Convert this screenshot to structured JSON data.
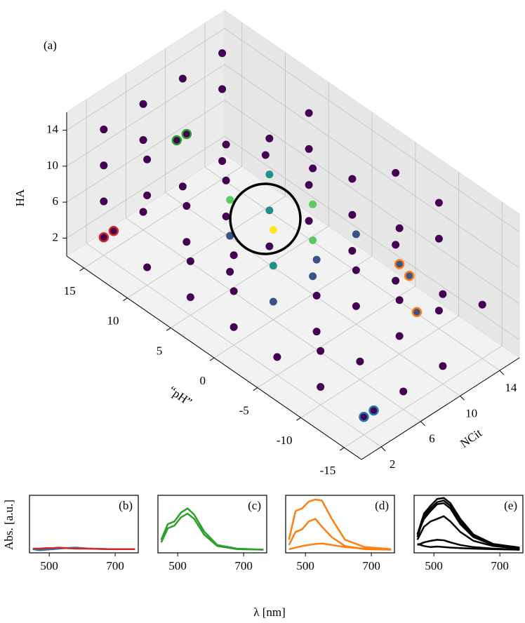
{
  "figure": {
    "xlabel": "λ [nm]",
    "ylabel": "Abs. [a.u.]"
  },
  "chart_data": [
    {
      "type": "scatter3d",
      "label": "(a)",
      "xlabel": "NCit",
      "ylabel": "“pH”",
      "zlabel": "HA",
      "xlim": [
        0,
        16
      ],
      "ylim": [
        -17,
        17
      ],
      "zlim": [
        0,
        16
      ],
      "xticks": [
        2,
        6,
        10,
        14
      ],
      "yticks": [
        -15,
        -10,
        -5,
        0,
        5,
        10,
        15
      ],
      "zticks": [
        2,
        6,
        10,
        14
      ],
      "series": [
        {
          "x": [
            2,
            6,
            10,
            2,
            6,
            10,
            14,
            2,
            6,
            10,
            14,
            2,
            6,
            10,
            14,
            2,
            6,
            10,
            14,
            6,
            10,
            14,
            10,
            6,
            2,
            6,
            10,
            2,
            6,
            10,
            14,
            2,
            6,
            10,
            14,
            6,
            10,
            14,
            2,
            10,
            14,
            14,
            2,
            6,
            10,
            2,
            6,
            10,
            14,
            2,
            6,
            10,
            14,
            6,
            10,
            14,
            10,
            14,
            2,
            6,
            10,
            14,
            6,
            10,
            14,
            10,
            14,
            14,
            10,
            2
          ],
          "y": [
            10,
            10,
            10,
            5,
            5,
            5,
            5,
            0,
            0,
            0,
            0,
            -5,
            -5,
            -5,
            -5,
            -10,
            -10,
            -10,
            -10,
            -15,
            -15,
            15,
            15,
            15,
            15,
            10,
            10,
            5,
            5,
            5,
            5,
            0,
            0,
            0,
            0,
            -5,
            -5,
            -5,
            -10,
            -10,
            -15,
            10,
            15,
            15,
            10,
            10,
            5,
            5,
            5,
            0,
            0,
            0,
            0,
            -5,
            -5,
            -10,
            -15,
            15,
            15,
            15,
            15,
            15,
            10,
            5,
            5,
            0,
            -5,
            -10,
            -10,
            10
          ],
          "z": [
            2,
            2,
            2,
            2,
            2,
            2,
            2,
            2,
            2,
            2,
            2,
            2,
            2,
            2,
            2,
            2,
            2,
            2,
            2,
            2,
            2,
            2,
            2,
            2,
            6,
            6,
            6,
            6,
            6,
            6,
            6,
            6,
            6,
            6,
            6,
            6,
            6,
            6,
            6,
            6,
            6,
            6,
            10,
            10,
            10,
            10,
            10,
            10,
            10,
            10,
            10,
            10,
            10,
            10,
            10,
            10,
            10,
            10,
            14,
            14,
            14,
            14,
            14,
            14,
            14,
            14,
            14,
            14,
            14,
            14
          ],
          "colors": [
            "#440154",
            "#440154",
            "#440154",
            "#440154",
            "#440154",
            "#440154",
            "#440154",
            "#440154",
            "#3b528b",
            "#3b528b",
            "#440154",
            "#440154",
            "#440154",
            "#440154",
            "#440154",
            "#440154",
            "#440154",
            "#440154",
            "#440154",
            "#440154",
            "#440154",
            "#440154",
            "#440154",
            "#440154",
            "#440154",
            "#440154",
            "#440154",
            "#440154",
            "#3b528b",
            "#21918c",
            "#440154",
            "#440154",
            "#21918c",
            "#5ec962",
            "#440154",
            "#440154",
            "#440154",
            "#440154",
            "#440154",
            "#440154",
            "#440154",
            "#440154",
            "#440154",
            "#440154",
            "#440154",
            "#440154",
            "#5ec962",
            "#21918c",
            "#440154",
            "#440154",
            "#fde725",
            "#5ec962",
            "#440154",
            "#3b528b",
            "#3b528b",
            "#440154",
            "#440154",
            "#440154",
            "#440154",
            "#440154",
            "#440154",
            "#440154",
            "#440154",
            "#440154",
            "#440154",
            "#440154",
            "#440154",
            "#440154",
            "#440154",
            "#440154"
          ]
        },
        {
          "color": "#440154",
          "edgecolor": "#d62728",
          "x": [
            2,
            3
          ],
          "y": [
            15,
            15
          ],
          "z": [
            2,
            2
          ]
        },
        {
          "color": "#440154",
          "edgecolor": "#2ca02c",
          "x": [
            5,
            6
          ],
          "y": [
            10,
            10
          ],
          "z": [
            14,
            14
          ]
        },
        {
          "color": "#3b528b",
          "edgecolor": "#ff7f0e",
          "x": [
            10,
            10,
            11
          ],
          "y": [
            -12,
            -10,
            -10
          ],
          "z": [
            6,
            10,
            8
          ]
        },
        {
          "color": "#440154",
          "edgecolor": "#1f77b4",
          "x": [
            2,
            3
          ],
          "y": [
            -15,
            -15
          ],
          "z": [
            2,
            2
          ]
        }
      ]
    },
    {
      "type": "line",
      "label": "(b)",
      "xlim": [
        440,
        770
      ],
      "xticks": [
        500,
        700
      ],
      "ylim": [
        -0.05,
        1.05
      ],
      "x": [
        450,
        470,
        490,
        510,
        530,
        550,
        580,
        620,
        680,
        760
      ],
      "series": [
        {
          "color": "#1f77b4",
          "values": [
            0.02,
            0.0,
            0.01,
            0.02,
            0.03,
            0.04,
            0.05,
            0.03,
            0.02,
            0.02
          ]
        },
        {
          "color": "#d62728",
          "values": [
            0.03,
            0.03,
            0.04,
            0.04,
            0.05,
            0.04,
            0.03,
            0.03,
            0.02,
            0.02
          ]
        }
      ]
    },
    {
      "type": "line",
      "label": "(c)",
      "xlim": [
        440,
        770
      ],
      "xticks": [
        500,
        700
      ],
      "ylim": [
        -0.05,
        1.05
      ],
      "x": [
        450,
        470,
        490,
        510,
        530,
        550,
        580,
        620,
        680,
        760
      ],
      "series": [
        {
          "color": "#2ca02c",
          "values": [
            0.2,
            0.5,
            0.55,
            0.72,
            0.8,
            0.68,
            0.36,
            0.1,
            0.03,
            0.01
          ]
        },
        {
          "color": "#2ca02c",
          "values": [
            0.15,
            0.42,
            0.47,
            0.63,
            0.7,
            0.6,
            0.3,
            0.08,
            0.02,
            0.01
          ]
        }
      ]
    },
    {
      "type": "line",
      "label": "(d)",
      "xlim": [
        440,
        770
      ],
      "xticks": [
        500,
        700
      ],
      "ylim": [
        -0.05,
        1.05
      ],
      "x": [
        450,
        470,
        490,
        510,
        530,
        550,
        580,
        620,
        680,
        760
      ],
      "series": [
        {
          "color": "#ff7f0e",
          "values": [
            0.2,
            0.75,
            0.8,
            0.93,
            0.97,
            0.95,
            0.6,
            0.2,
            0.06,
            0.02
          ]
        },
        {
          "color": "#ff7f0e",
          "values": [
            0.1,
            0.35,
            0.4,
            0.55,
            0.6,
            0.45,
            0.25,
            0.08,
            0.02,
            0.01
          ]
        },
        {
          "color": "#ff7f0e",
          "values": [
            0.02,
            0.05,
            0.08,
            0.1,
            0.12,
            0.13,
            0.1,
            0.06,
            0.03,
            0.01
          ]
        }
      ]
    },
    {
      "type": "line",
      "label": "(e)",
      "xlim": [
        440,
        770
      ],
      "xticks": [
        500,
        700
      ],
      "ylim": [
        -0.05,
        1.05
      ],
      "x": [
        450,
        470,
        490,
        510,
        530,
        550,
        580,
        620,
        680,
        760
      ],
      "series": [
        {
          "color": "#000000",
          "values": [
            0.3,
            0.7,
            0.85,
            0.98,
            1.0,
            0.9,
            0.6,
            0.3,
            0.12,
            0.05
          ]
        },
        {
          "color": "#000000",
          "values": [
            0.25,
            0.65,
            0.8,
            0.92,
            0.95,
            0.85,
            0.55,
            0.28,
            0.1,
            0.04
          ]
        },
        {
          "color": "#000000",
          "values": [
            0.3,
            0.6,
            0.75,
            0.88,
            0.9,
            0.8,
            0.5,
            0.25,
            0.1,
            0.04
          ]
        },
        {
          "color": "#000000",
          "values": [
            0.2,
            0.45,
            0.55,
            0.6,
            0.65,
            0.55,
            0.35,
            0.18,
            0.08,
            0.03
          ]
        },
        {
          "color": "#000000",
          "values": [
            0.1,
            0.15,
            0.18,
            0.2,
            0.19,
            0.15,
            0.1,
            0.06,
            0.03,
            0.01
          ]
        },
        {
          "color": "#000000",
          "values": [
            0.12,
            0.08,
            0.06,
            0.07,
            0.06,
            0.05,
            0.04,
            0.03,
            0.02,
            0.01
          ]
        }
      ]
    }
  ]
}
